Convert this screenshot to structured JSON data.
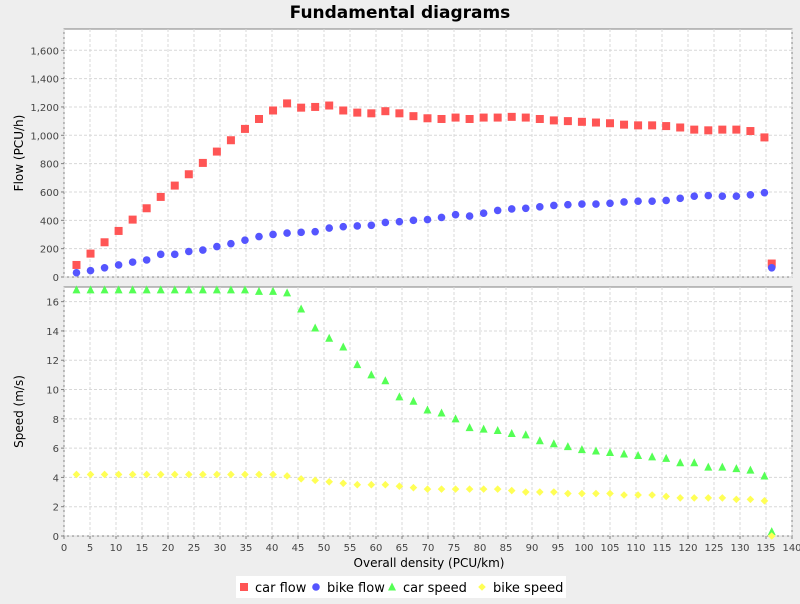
{
  "chart_data": {
    "type": "scatter",
    "title": "Fundamental diagrams",
    "xlabel": "Overall density (PCU/km)",
    "xlim": [
      0,
      140
    ],
    "x_ticks": [
      "0",
      "5",
      "10",
      "15",
      "20",
      "25",
      "30",
      "35",
      "40",
      "45",
      "50",
      "55",
      "60",
      "65",
      "70",
      "75",
      "80",
      "85",
      "90",
      "95",
      "100",
      "105",
      "110",
      "115",
      "120",
      "125",
      "130",
      "135",
      "140"
    ],
    "grid": true,
    "legend_position": "bottom",
    "panels": [
      {
        "id": "flow",
        "ylabel": "Flow (PCU/h)",
        "ylim": [
          0,
          1750
        ],
        "y_ticks": [
          "0",
          "200",
          "400",
          "600",
          "800",
          "1,000",
          "1,200",
          "1,400",
          "1,600"
        ],
        "series": [
          {
            "name": "car flow",
            "marker": "square",
            "color": "#ff5555",
            "points": [
              [
                2.4,
                85
              ],
              [
                5.1,
                165
              ],
              [
                7.8,
                245
              ],
              [
                10.5,
                325
              ],
              [
                13.2,
                405
              ],
              [
                15.9,
                485
              ],
              [
                18.6,
                565
              ],
              [
                21.3,
                645
              ],
              [
                24.0,
                725
              ],
              [
                26.7,
                805
              ],
              [
                29.4,
                885
              ],
              [
                32.1,
                965
              ],
              [
                34.8,
                1045
              ],
              [
                37.5,
                1115
              ],
              [
                40.2,
                1175
              ],
              [
                42.9,
                1225
              ],
              [
                45.6,
                1195
              ],
              [
                48.3,
                1200
              ],
              [
                51.0,
                1210
              ],
              [
                53.7,
                1175
              ],
              [
                56.4,
                1160
              ],
              [
                59.1,
                1155
              ],
              [
                61.8,
                1170
              ],
              [
                64.5,
                1155
              ],
              [
                67.2,
                1135
              ],
              [
                69.9,
                1120
              ],
              [
                72.6,
                1115
              ],
              [
                75.3,
                1125
              ],
              [
                78.0,
                1115
              ],
              [
                80.7,
                1125
              ],
              [
                83.4,
                1125
              ],
              [
                86.1,
                1130
              ],
              [
                88.8,
                1125
              ],
              [
                91.5,
                1115
              ],
              [
                94.2,
                1105
              ],
              [
                96.9,
                1100
              ],
              [
                99.6,
                1095
              ],
              [
                102.3,
                1090
              ],
              [
                105.0,
                1085
              ],
              [
                107.7,
                1075
              ],
              [
                110.4,
                1070
              ],
              [
                113.1,
                1070
              ],
              [
                115.8,
                1065
              ],
              [
                118.5,
                1055
              ],
              [
                121.2,
                1040
              ],
              [
                123.9,
                1035
              ],
              [
                126.6,
                1040
              ],
              [
                129.3,
                1040
              ],
              [
                132.0,
                1030
              ],
              [
                134.7,
                985
              ],
              [
                136.1,
                95
              ]
            ]
          },
          {
            "name": "bike flow",
            "marker": "circle",
            "color": "#5555ff",
            "points": [
              [
                2.4,
                30
              ],
              [
                5.1,
                45
              ],
              [
                7.8,
                65
              ],
              [
                10.5,
                85
              ],
              [
                13.2,
                105
              ],
              [
                15.9,
                120
              ],
              [
                18.6,
                160
              ],
              [
                21.3,
                160
              ],
              [
                24.0,
                180
              ],
              [
                26.7,
                190
              ],
              [
                29.4,
                215
              ],
              [
                32.1,
                235
              ],
              [
                34.8,
                260
              ],
              [
                37.5,
                285
              ],
              [
                40.2,
                300
              ],
              [
                42.9,
                310
              ],
              [
                45.6,
                315
              ],
              [
                48.3,
                320
              ],
              [
                51.0,
                345
              ],
              [
                53.7,
                355
              ],
              [
                56.4,
                360
              ],
              [
                59.1,
                365
              ],
              [
                61.8,
                385
              ],
              [
                64.5,
                390
              ],
              [
                67.2,
                400
              ],
              [
                69.9,
                405
              ],
              [
                72.6,
                420
              ],
              [
                75.3,
                440
              ],
              [
                78.0,
                430
              ],
              [
                80.7,
                450
              ],
              [
                83.4,
                470
              ],
              [
                86.1,
                480
              ],
              [
                88.8,
                485
              ],
              [
                91.5,
                495
              ],
              [
                94.2,
                505
              ],
              [
                96.9,
                510
              ],
              [
                99.6,
                515
              ],
              [
                102.3,
                515
              ],
              [
                105.0,
                520
              ],
              [
                107.7,
                530
              ],
              [
                110.4,
                535
              ],
              [
                113.1,
                535
              ],
              [
                115.8,
                540
              ],
              [
                118.5,
                555
              ],
              [
                121.2,
                570
              ],
              [
                123.9,
                575
              ],
              [
                126.6,
                570
              ],
              [
                129.3,
                570
              ],
              [
                132.0,
                580
              ],
              [
                134.7,
                595
              ],
              [
                136.1,
                65
              ]
            ]
          }
        ]
      },
      {
        "id": "speed",
        "ylabel": "Speed (m/s)",
        "ylim": [
          0,
          17
        ],
        "y_ticks": [
          "0",
          "2",
          "4",
          "6",
          "8",
          "10",
          "12",
          "14",
          "16"
        ],
        "series": [
          {
            "name": "car speed",
            "marker": "triangle",
            "color": "#55ff55",
            "points": [
              [
                2.4,
                16.8
              ],
              [
                5.1,
                16.8
              ],
              [
                7.8,
                16.8
              ],
              [
                10.5,
                16.8
              ],
              [
                13.2,
                16.8
              ],
              [
                15.9,
                16.8
              ],
              [
                18.6,
                16.8
              ],
              [
                21.3,
                16.8
              ],
              [
                24.0,
                16.8
              ],
              [
                26.7,
                16.8
              ],
              [
                29.4,
                16.8
              ],
              [
                32.1,
                16.8
              ],
              [
                34.8,
                16.8
              ],
              [
                37.5,
                16.7
              ],
              [
                40.2,
                16.7
              ],
              [
                42.9,
                16.6
              ],
              [
                45.6,
                15.5
              ],
              [
                48.3,
                14.2
              ],
              [
                51.0,
                13.5
              ],
              [
                53.7,
                12.9
              ],
              [
                56.4,
                11.7
              ],
              [
                59.1,
                11.0
              ],
              [
                61.8,
                10.6
              ],
              [
                64.5,
                9.5
              ],
              [
                67.2,
                9.2
              ],
              [
                69.9,
                8.6
              ],
              [
                72.6,
                8.4
              ],
              [
                75.3,
                8.0
              ],
              [
                78.0,
                7.4
              ],
              [
                80.7,
                7.3
              ],
              [
                83.4,
                7.2
              ],
              [
                86.1,
                7.0
              ],
              [
                88.8,
                6.9
              ],
              [
                91.5,
                6.5
              ],
              [
                94.2,
                6.3
              ],
              [
                96.9,
                6.1
              ],
              [
                99.6,
                5.9
              ],
              [
                102.3,
                5.8
              ],
              [
                105.0,
                5.7
              ],
              [
                107.7,
                5.6
              ],
              [
                110.4,
                5.5
              ],
              [
                113.1,
                5.4
              ],
              [
                115.8,
                5.3
              ],
              [
                118.5,
                5.0
              ],
              [
                121.2,
                5.0
              ],
              [
                123.9,
                4.7
              ],
              [
                126.6,
                4.7
              ],
              [
                129.3,
                4.6
              ],
              [
                132.0,
                4.5
              ],
              [
                134.7,
                4.1
              ],
              [
                136.1,
                0.3
              ]
            ]
          },
          {
            "name": "bike speed",
            "marker": "diamond",
            "color": "#ffff55",
            "points": [
              [
                2.4,
                4.2
              ],
              [
                5.1,
                4.2
              ],
              [
                7.8,
                4.2
              ],
              [
                10.5,
                4.2
              ],
              [
                13.2,
                4.2
              ],
              [
                15.9,
                4.2
              ],
              [
                18.6,
                4.2
              ],
              [
                21.3,
                4.2
              ],
              [
                24.0,
                4.2
              ],
              [
                26.7,
                4.2
              ],
              [
                29.4,
                4.2
              ],
              [
                32.1,
                4.2
              ],
              [
                34.8,
                4.2
              ],
              [
                37.5,
                4.2
              ],
              [
                40.2,
                4.2
              ],
              [
                42.9,
                4.1
              ],
              [
                45.6,
                3.9
              ],
              [
                48.3,
                3.8
              ],
              [
                51.0,
                3.7
              ],
              [
                53.7,
                3.6
              ],
              [
                56.4,
                3.5
              ],
              [
                59.1,
                3.5
              ],
              [
                61.8,
                3.5
              ],
              [
                64.5,
                3.4
              ],
              [
                67.2,
                3.3
              ],
              [
                69.9,
                3.2
              ],
              [
                72.6,
                3.2
              ],
              [
                75.3,
                3.2
              ],
              [
                78.0,
                3.2
              ],
              [
                80.7,
                3.2
              ],
              [
                83.4,
                3.2
              ],
              [
                86.1,
                3.1
              ],
              [
                88.8,
                3.0
              ],
              [
                91.5,
                3.0
              ],
              [
                94.2,
                3.0
              ],
              [
                96.9,
                2.9
              ],
              [
                99.6,
                2.9
              ],
              [
                102.3,
                2.9
              ],
              [
                105.0,
                2.9
              ],
              [
                107.7,
                2.8
              ],
              [
                110.4,
                2.8
              ],
              [
                113.1,
                2.8
              ],
              [
                115.8,
                2.7
              ],
              [
                118.5,
                2.6
              ],
              [
                121.2,
                2.6
              ],
              [
                123.9,
                2.6
              ],
              [
                126.6,
                2.6
              ],
              [
                129.3,
                2.5
              ],
              [
                132.0,
                2.5
              ],
              [
                134.7,
                2.4
              ],
              [
                136.1,
                0.0
              ]
            ]
          }
        ]
      }
    ]
  }
}
